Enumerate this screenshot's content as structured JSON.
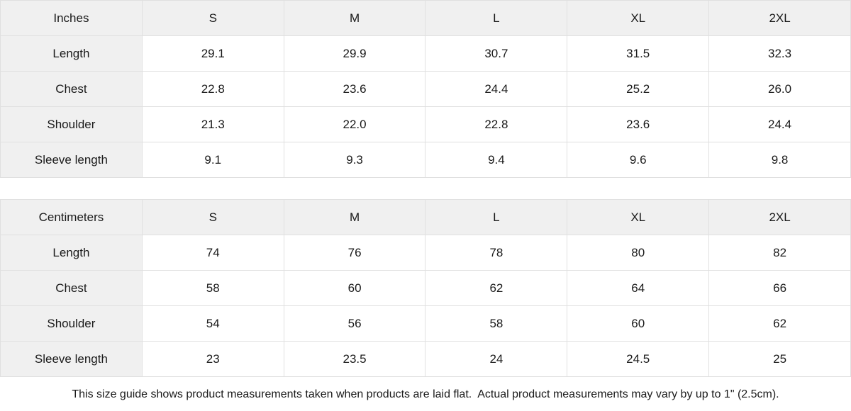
{
  "colors": {
    "header_background": "#f0f0f0",
    "border": "#e0e0e0",
    "text": "#1a1a1a",
    "page_background": "#ffffff"
  },
  "size_guide": {
    "tables": [
      {
        "unit_label": "Inches",
        "columns": [
          "S",
          "M",
          "L",
          "XL",
          "2XL"
        ],
        "rows": [
          {
            "label": "Length",
            "values": [
              "29.1",
              "29.9",
              "30.7",
              "31.5",
              "32.3"
            ]
          },
          {
            "label": "Chest",
            "values": [
              "22.8",
              "23.6",
              "24.4",
              "25.2",
              "26.0"
            ]
          },
          {
            "label": "Shoulder",
            "values": [
              "21.3",
              "22.0",
              "22.8",
              "23.6",
              "24.4"
            ]
          },
          {
            "label": "Sleeve length",
            "values": [
              "9.1",
              "9.3",
              "9.4",
              "9.6",
              "9.8"
            ]
          }
        ]
      },
      {
        "unit_label": "Centimeters",
        "columns": [
          "S",
          "M",
          "L",
          "XL",
          "2XL"
        ],
        "rows": [
          {
            "label": "Length",
            "values": [
              "74",
              "76",
              "78",
              "80",
              "82"
            ]
          },
          {
            "label": "Chest",
            "values": [
              "58",
              "60",
              "62",
              "64",
              "66"
            ]
          },
          {
            "label": "Shoulder",
            "values": [
              "54",
              "56",
              "58",
              "60",
              "62"
            ]
          },
          {
            "label": "Sleeve length",
            "values": [
              "23",
              "23.5",
              "24",
              "24.5",
              "25"
            ]
          }
        ]
      }
    ],
    "footnote": "This size guide shows product measurements taken when products are laid flat.  Actual product measurements may vary by up to 1\" (2.5cm)."
  }
}
